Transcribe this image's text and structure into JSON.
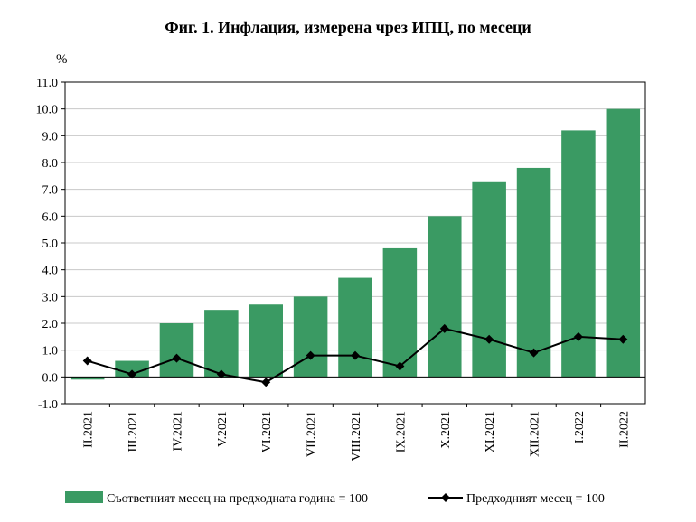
{
  "chart_data": {
    "type": "bar",
    "title": "Фиг. 1. Инфлация, измерена чрез ИПЦ, по месеци",
    "ylabel": "%",
    "xlabel": "",
    "ylim": [
      -1.0,
      11.0
    ],
    "yticks": [
      "-1.0",
      "0.0",
      "1.0",
      "2.0",
      "3.0",
      "4.0",
      "5.0",
      "6.0",
      "7.0",
      "8.0",
      "9.0",
      "10.0",
      "11.0"
    ],
    "grid": true,
    "legend": "bottom",
    "categories": [
      "II.2021",
      "III.2021",
      "IV.2021",
      "V.2021",
      "VI.2021",
      "VII.2021",
      "VIII.2021",
      "IX.2021",
      "X.2021",
      "XI.2021",
      "XII.2021",
      "I.2022",
      "II.2022"
    ],
    "series": [
      {
        "name": "Съответният месец на предходната година = 100",
        "type": "bar",
        "color": "#3a9a63",
        "values": [
          -0.1,
          0.6,
          2.0,
          2.5,
          2.7,
          3.0,
          3.7,
          4.8,
          6.0,
          7.3,
          7.8,
          9.2,
          10.0
        ]
      },
      {
        "name": "Предходният месец = 100",
        "type": "line",
        "color": "#000000",
        "marker": "diamond",
        "values": [
          0.6,
          0.1,
          0.7,
          0.1,
          -0.2,
          0.8,
          0.8,
          0.4,
          1.8,
          1.4,
          0.9,
          1.5,
          1.4
        ]
      }
    ]
  }
}
